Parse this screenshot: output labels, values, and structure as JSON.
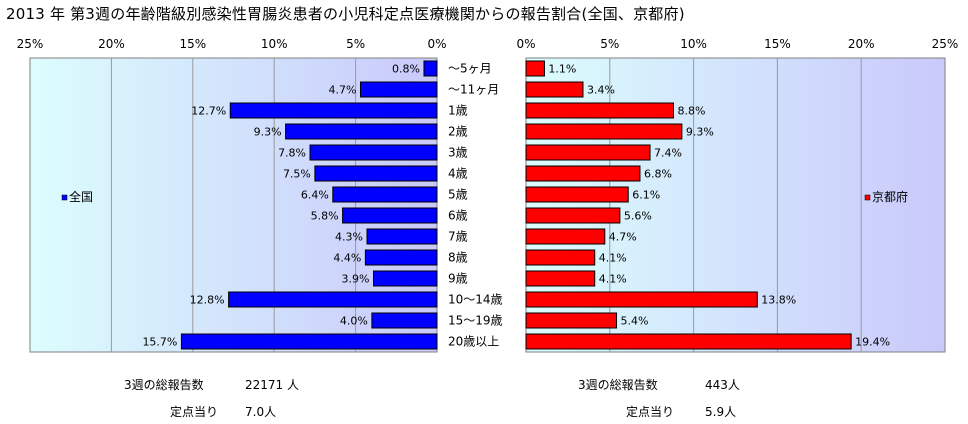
{
  "title": "2013 年 第3週の年齢階級別感染性胃腸炎患者の小児科定点医療機関からの報告割合(全国、京都府)",
  "chart_data": {
    "type": "bar",
    "orientation": "horizontal",
    "categories": [
      "～5ヶ月",
      "～11ヶ月",
      "1歳",
      "2歳",
      "3歳",
      "4歳",
      "5歳",
      "6歳",
      "7歳",
      "8歳",
      "9歳",
      "10～14歳",
      "15～19歳",
      "20歳以上"
    ],
    "xlim": [
      0,
      25
    ],
    "x_ticks": [
      "0%",
      "5%",
      "10%",
      "15%",
      "20%",
      "25%"
    ],
    "grid": true,
    "series": [
      {
        "name": "全国",
        "color": "#0000ff",
        "values": [
          0.8,
          4.7,
          12.7,
          9.3,
          7.8,
          7.5,
          6.4,
          5.8,
          4.3,
          4.4,
          3.9,
          12.8,
          4.0,
          15.7
        ],
        "labels": [
          "0.8%",
          "4.7%",
          "12.7%",
          "9.3%",
          "7.8%",
          "7.5%",
          "6.4%",
          "5.8%",
          "4.3%",
          "4.4%",
          "3.9%",
          "12.8%",
          "4.0%",
          "15.7%"
        ],
        "legend": "left"
      },
      {
        "name": "京都府",
        "color": "#ff0000",
        "values": [
          1.1,
          3.4,
          8.8,
          9.3,
          7.4,
          6.8,
          6.1,
          5.6,
          4.7,
          4.1,
          4.1,
          13.8,
          5.4,
          19.4
        ],
        "labels": [
          "1.1%",
          "3.4%",
          "8.8%",
          "9.3%",
          "7.4%",
          "6.8%",
          "6.1%",
          "5.6%",
          "4.7%",
          "4.1%",
          "4.1%",
          "13.8%",
          "5.4%",
          "19.4%"
        ],
        "legend": "right"
      }
    ]
  },
  "footer": {
    "left_total_label": "3週の総報告数",
    "left_total_value": "22171 人",
    "left_per_label": "定点当り",
    "left_per_value": "7.0人",
    "right_total_label": "3週の総報告数",
    "right_total_value": "443人",
    "right_per_label": "定点当り",
    "right_per_value": "5.9人"
  }
}
